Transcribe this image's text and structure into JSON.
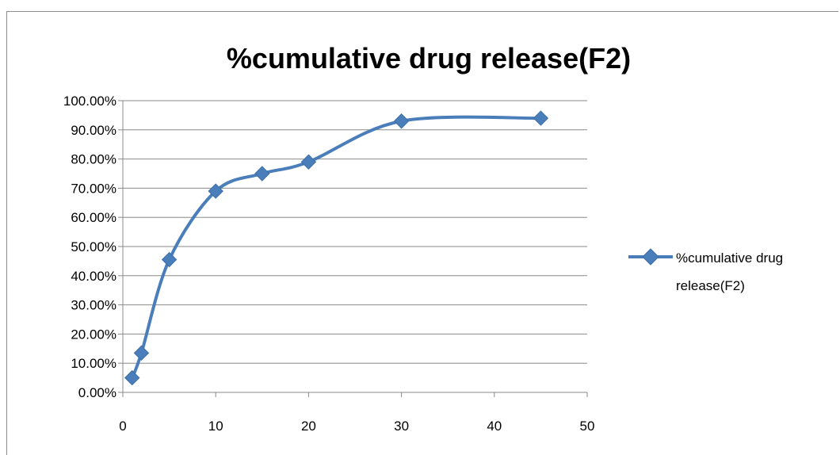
{
  "chart_data": {
    "type": "line",
    "title": "%cumulative drug release(F2)",
    "xlabel": "",
    "ylabel": "",
    "xlim": [
      0,
      50
    ],
    "ylim": [
      0,
      1
    ],
    "x_ticks": [
      "0",
      "10",
      "20",
      "30",
      "40",
      "50"
    ],
    "y_ticks": [
      "0.00%",
      "10.00%",
      "20.00%",
      "30.00%",
      "40.00%",
      "50.00%",
      "60.00%",
      "70.00%",
      "80.00%",
      "90.00%",
      "100.00%"
    ],
    "grid": true,
    "legend_position": "right",
    "smooth": true,
    "series": [
      {
        "name": "%cumulative drug release(F2)",
        "legend_lines": [
          "%cumulative drug",
          "release(F2)"
        ],
        "color": "#4a7ebb",
        "marker": "diamond",
        "x": [
          1,
          2,
          5,
          10,
          15,
          20,
          30,
          45
        ],
        "y": [
          0.05,
          0.135,
          0.455,
          0.69,
          0.75,
          0.79,
          0.93,
          0.94
        ]
      }
    ]
  }
}
